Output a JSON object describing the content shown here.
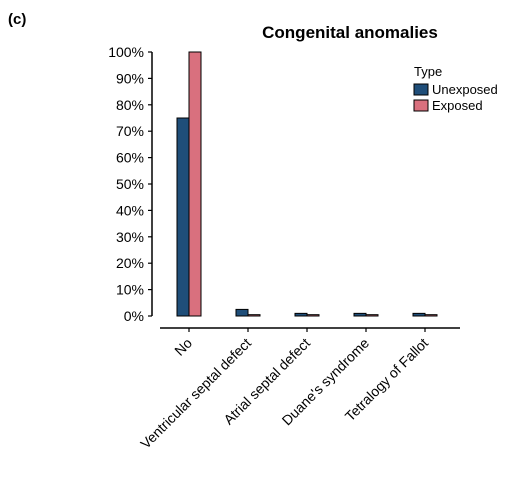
{
  "panel_label": "(c)",
  "chart_data": {
    "type": "bar",
    "title": "Congenital anomalies",
    "xlabel": "",
    "ylabel": "",
    "categories": [
      "No",
      "Ventricular septal defect",
      "Atrial septal defect",
      "Duane's syndrome",
      "Tetralogy of Fallot"
    ],
    "series": [
      {
        "name": "Unexposed",
        "color": "#1f4e79",
        "values": [
          75,
          2.5,
          1,
          1,
          1
        ]
      },
      {
        "name": "Exposed",
        "color": "#d9707e",
        "values": [
          100,
          0.5,
          0.5,
          0.5,
          0.5
        ]
      }
    ],
    "ylim": [
      0,
      100
    ],
    "yticks": [
      "0%",
      "10%",
      "20%",
      "30%",
      "40%",
      "50%",
      "60%",
      "70%",
      "80%",
      "90%",
      "100%"
    ],
    "legend": {
      "title": "Type",
      "placement": "top-right"
    },
    "grid": false
  }
}
